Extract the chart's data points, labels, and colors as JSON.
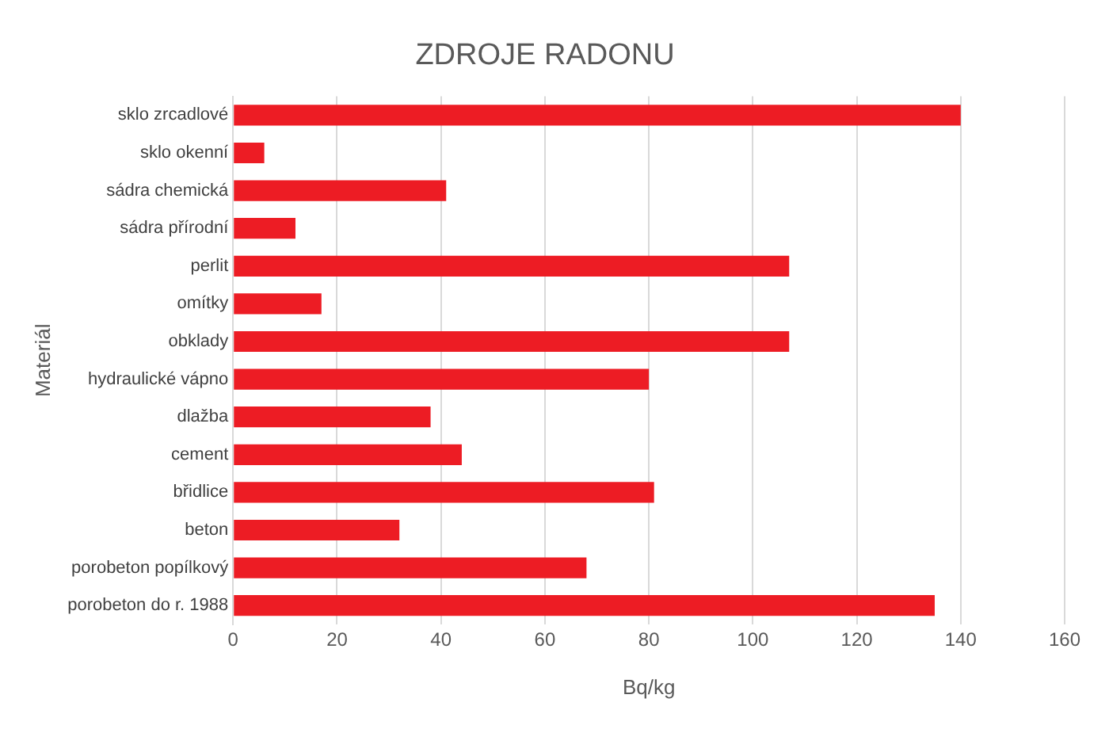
{
  "chart_data": {
    "type": "bar",
    "orientation": "horizontal",
    "title": "ZDROJE RADONU",
    "xlabel": "Bq/kg",
    "ylabel": "Materiál",
    "categories": [
      "sklo zrcadlové",
      "sklo okenní",
      "sádra chemická",
      "sádra přírodní",
      "perlit",
      "omítky",
      "obklady",
      "hydraulické vápno",
      "dlažba",
      "cement",
      "břidlice",
      "beton",
      "porobeton popílkový",
      "porobeton do r. 1988"
    ],
    "values": [
      140,
      6,
      41,
      12,
      107,
      17,
      107,
      80,
      38,
      44,
      81,
      32,
      68,
      135
    ],
    "color": "#ed1c24",
    "xlim": [
      0,
      160
    ],
    "xticks": [
      0,
      20,
      40,
      60,
      80,
      100,
      120,
      140,
      160
    ],
    "grid": "x",
    "legend": false
  }
}
